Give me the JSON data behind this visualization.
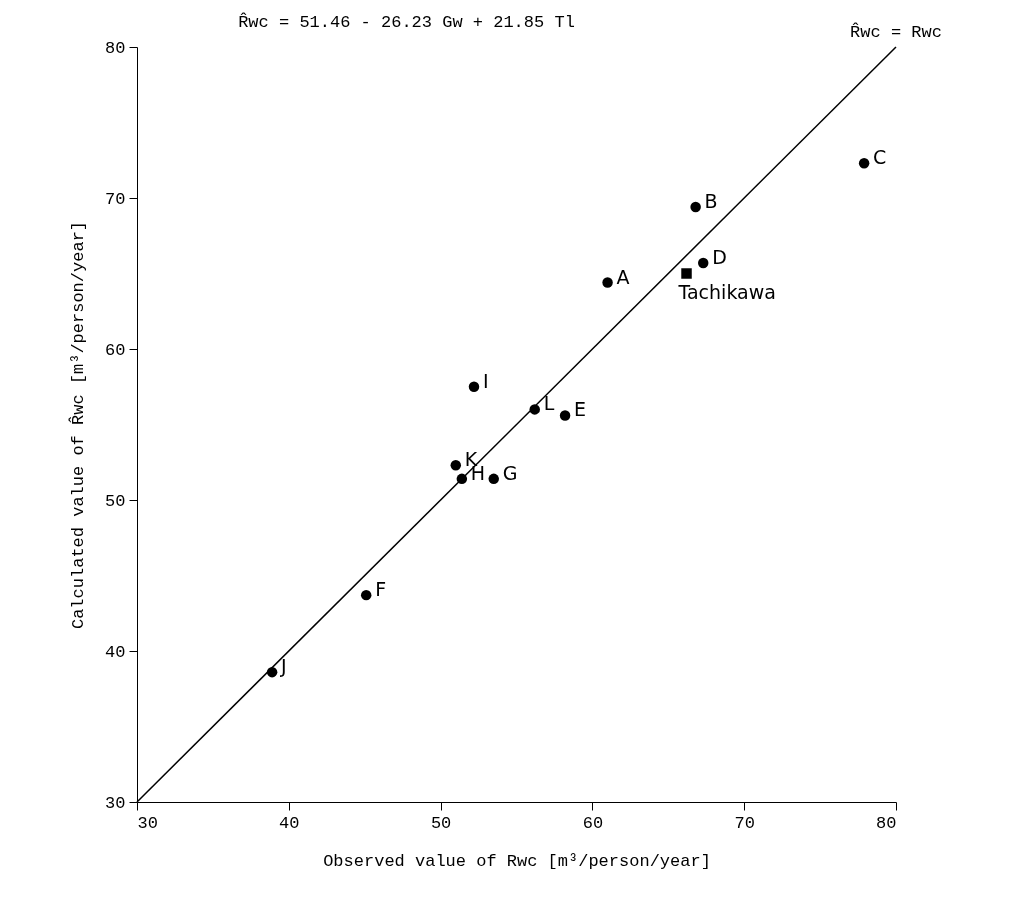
{
  "chart_data": {
    "type": "scatter",
    "title": "R̂wc = 51.46 - 26.23 Gw + 21.85 Tl",
    "xlabel": "Observed value of Rwc [m³/person/year]",
    "ylabel": "Calculated value of R̂wc [m³/person/year]",
    "xlim": [
      30,
      80
    ],
    "ylim": [
      30,
      80
    ],
    "xticks": [
      30,
      40,
      50,
      60,
      70,
      80
    ],
    "yticks": [
      30,
      40,
      50,
      60,
      70,
      80
    ],
    "grid": false,
    "series": [
      {
        "type": "scatter",
        "marker": "circle",
        "color": "#000000",
        "x": [
          61.0,
          66.8,
          77.9,
          67.3,
          58.2,
          45.1,
          53.5,
          51.4,
          52.2,
          38.9,
          51.0,
          56.2
        ],
        "values": [
          64.4,
          69.4,
          72.3,
          65.7,
          55.6,
          43.7,
          51.4,
          51.4,
          57.5,
          38.6,
          52.3,
          56.0
        ]
      },
      {
        "type": "scatter",
        "marker": "square",
        "color": "#000000",
        "x": [
          66.2
        ],
        "values": [
          65.0
        ]
      },
      {
        "type": "line",
        "name": "R̂wc = Rwc",
        "color": "#000000",
        "line_style": "solid",
        "marker": "none",
        "x": [
          30,
          80
        ],
        "values": [
          30,
          80
        ]
      }
    ],
    "annotations": [
      {
        "text": "A",
        "x": 61.0,
        "y": 64.4
      },
      {
        "text": "B",
        "x": 66.8,
        "y": 69.4
      },
      {
        "text": "C",
        "x": 77.9,
        "y": 72.3
      },
      {
        "text": "D",
        "x": 67.3,
        "y": 65.7
      },
      {
        "text": "E",
        "x": 58.2,
        "y": 55.6
      },
      {
        "text": "F",
        "x": 45.1,
        "y": 43.7
      },
      {
        "text": "G",
        "x": 53.5,
        "y": 51.4
      },
      {
        "text": "H",
        "x": 51.4,
        "y": 51.4
      },
      {
        "text": "I",
        "x": 52.2,
        "y": 57.5
      },
      {
        "text": "J",
        "x": 38.9,
        "y": 38.6
      },
      {
        "text": "K",
        "x": 51.0,
        "y": 52.3
      },
      {
        "text": "L",
        "x": 56.2,
        "y": 56.0
      },
      {
        "text": "Tachikawa",
        "x": 66.2,
        "y": 65.0
      }
    ]
  }
}
